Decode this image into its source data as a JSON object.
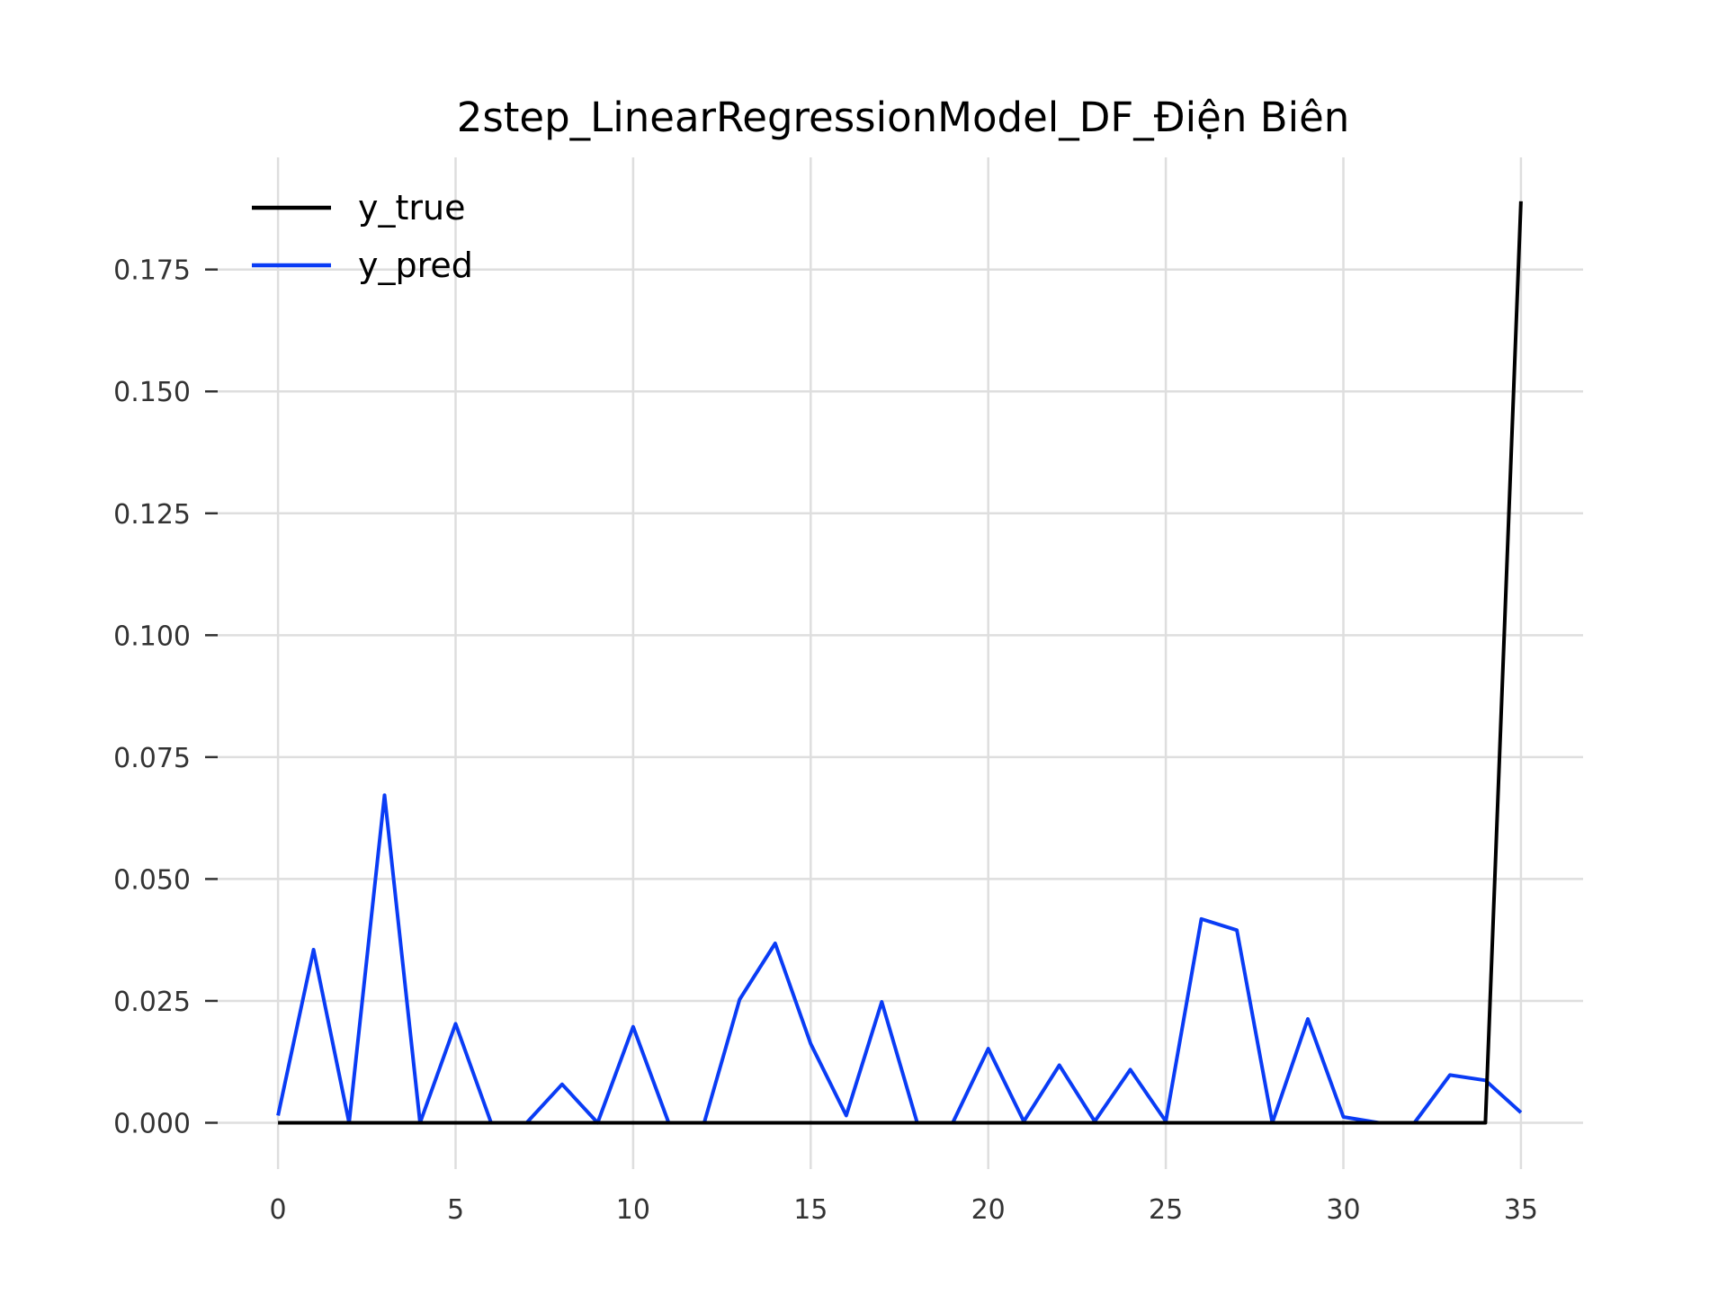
{
  "chart_data": {
    "type": "line",
    "title": "2step_LinearRegressionModel_DF_Điện Biên",
    "xlabel": "",
    "ylabel": "",
    "x": [
      0,
      1,
      2,
      3,
      4,
      5,
      6,
      7,
      8,
      9,
      10,
      11,
      12,
      13,
      14,
      15,
      16,
      17,
      18,
      19,
      20,
      21,
      22,
      23,
      24,
      25,
      26,
      27,
      28,
      29,
      30,
      31,
      32,
      33,
      34,
      35
    ],
    "xlim": [
      -1.75,
      36.75
    ],
    "ylim": [
      -0.0095,
      0.198
    ],
    "xticks": [
      0,
      5,
      10,
      15,
      20,
      25,
      30,
      35
    ],
    "yticks": [
      0.0,
      0.025,
      0.05,
      0.075,
      0.1,
      0.125,
      0.15,
      0.175
    ],
    "xtick_labels": [
      "0",
      "5",
      "10",
      "15",
      "20",
      "25",
      "30",
      "35"
    ],
    "ytick_labels": [
      "0.000",
      "0.025",
      "0.050",
      "0.075",
      "0.100",
      "0.125",
      "0.150",
      "0.175"
    ],
    "grid": true,
    "legend_position": "top-left",
    "series": [
      {
        "name": "y_true",
        "color": "#000000",
        "values": [
          0,
          0,
          0,
          0,
          0,
          0,
          0,
          0,
          0,
          0,
          0,
          0,
          0,
          0,
          0,
          0,
          0,
          0,
          0,
          0,
          0,
          0,
          0,
          0,
          0,
          0,
          0,
          0,
          0,
          0,
          0,
          0,
          0,
          0,
          0,
          0.189
        ]
      },
      {
        "name": "y_pred",
        "color": "#0a3cf5",
        "values": [
          0.0015,
          0.0355,
          0.0,
          0.0672,
          0.0,
          0.0203,
          0.0,
          0.0,
          0.0079,
          0.0,
          0.0197,
          0.0,
          0.0,
          0.0253,
          0.0368,
          0.0162,
          0.0015,
          0.0248,
          0.0,
          0.0,
          0.0152,
          0.0003,
          0.0118,
          0.0003,
          0.0109,
          0.0003,
          0.0418,
          0.0395,
          0.0,
          0.0213,
          0.0012,
          0.0,
          0.0,
          0.0098,
          0.0087,
          0.0021
        ]
      }
    ]
  }
}
